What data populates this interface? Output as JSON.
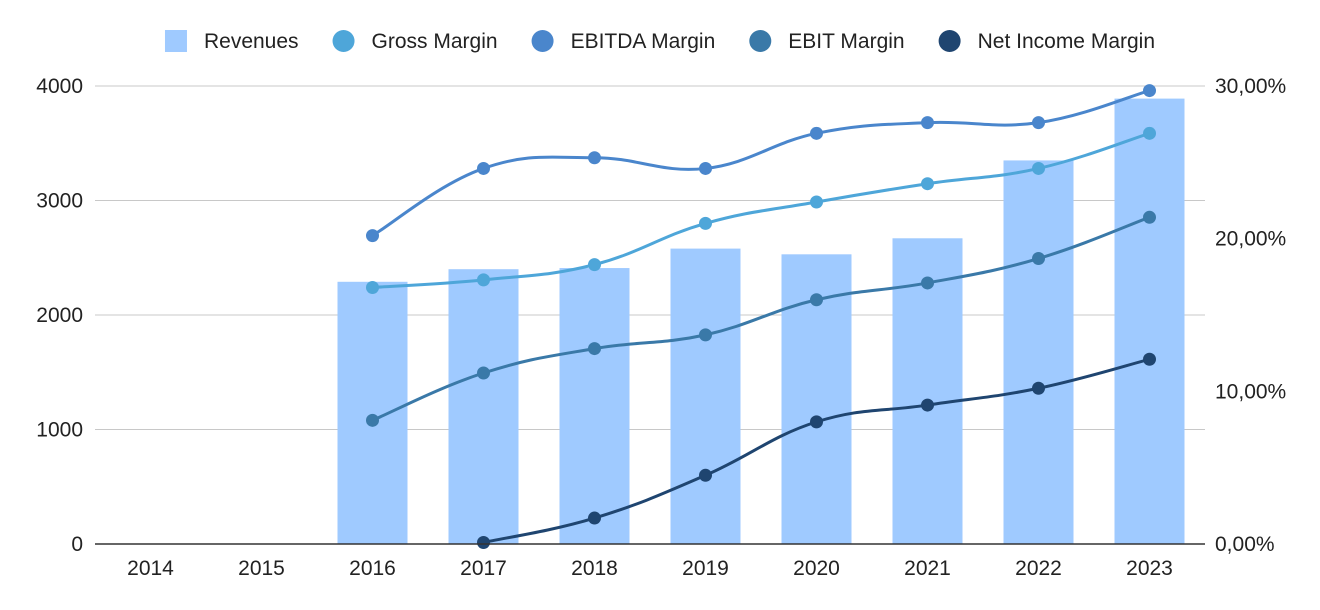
{
  "chart_data": {
    "type": "bar",
    "title": "",
    "xlabel": "",
    "ylabel": "",
    "categories": [
      "2014",
      "2015",
      "2016",
      "2017",
      "2018",
      "2019",
      "2020",
      "2021",
      "2022",
      "2023"
    ],
    "legend_position": "top",
    "grid": true,
    "y_left": {
      "min": 0,
      "max": 4000,
      "ticks": [
        "0",
        "1000",
        "2000",
        "3000",
        "4000"
      ]
    },
    "y_right": {
      "min": 0,
      "max": 0.3,
      "ticks": [
        "0,00%",
        "10,00%",
        "20,00%",
        "30,00%"
      ]
    },
    "series": [
      {
        "name": "Revenues",
        "kind": "bar",
        "axis": "left",
        "color": "#9fcaff",
        "values": [
          null,
          null,
          2290,
          2400,
          2410,
          2580,
          2530,
          2670,
          3350,
          3890
        ]
      },
      {
        "name": "Gross Margin",
        "kind": "line",
        "axis": "right",
        "color": "#4ea6d9",
        "values": [
          null,
          null,
          0.168,
          0.173,
          0.183,
          0.21,
          0.224,
          0.236,
          0.246,
          0.269
        ]
      },
      {
        "name": "EBITDA Margin",
        "kind": "line",
        "axis": "right",
        "color": "#4a86cc",
        "values": [
          null,
          null,
          0.202,
          0.246,
          0.253,
          0.246,
          0.269,
          0.276,
          0.276,
          0.297
        ]
      },
      {
        "name": "EBIT Margin",
        "kind": "line",
        "axis": "right",
        "color": "#3a79a8",
        "values": [
          null,
          null,
          0.081,
          0.112,
          0.128,
          0.137,
          0.16,
          0.171,
          0.187,
          0.214
        ]
      },
      {
        "name": "Net Income Margin",
        "kind": "line",
        "axis": "right",
        "color": "#1f4570",
        "values": [
          null,
          null,
          null,
          0.001,
          0.017,
          0.045,
          0.08,
          0.091,
          0.102,
          0.121
        ]
      }
    ]
  }
}
